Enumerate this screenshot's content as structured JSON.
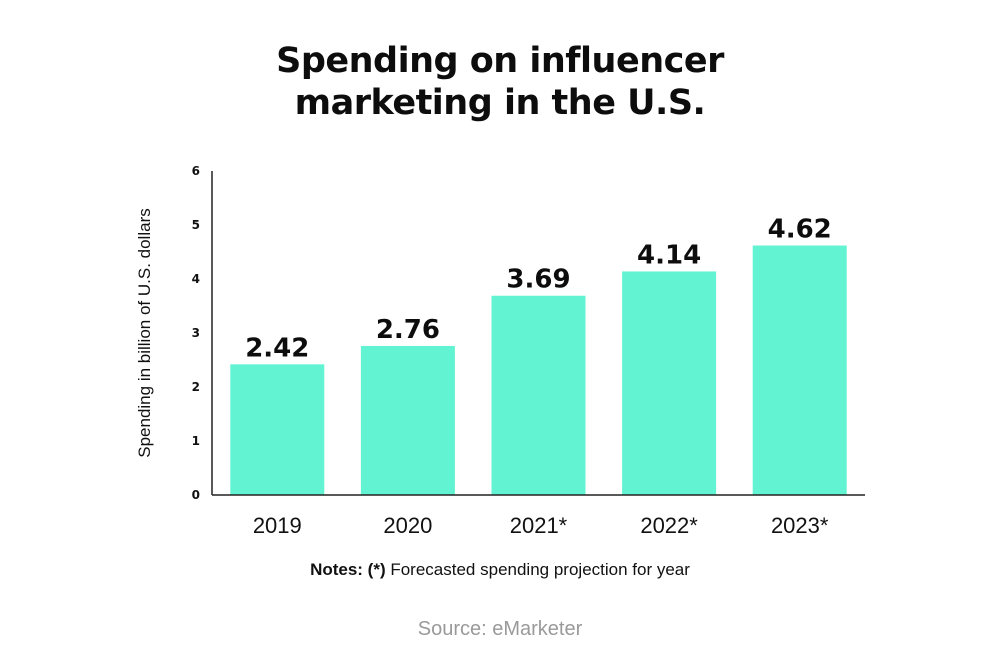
{
  "chart_data": {
    "type": "bar",
    "title": [
      "Spending on influencer",
      "marketing in the U.S."
    ],
    "ylabel": "Spending in billion of U.S. dollars",
    "xlabel": "",
    "categories": [
      "2019",
      "2020",
      "2021*",
      "2022*",
      "2023*"
    ],
    "values": [
      2.42,
      2.76,
      3.69,
      4.14,
      4.62
    ],
    "data_labels": [
      "2.42",
      "2.76",
      "3.69",
      "4.14",
      "4.62"
    ],
    "ylim": [
      0,
      6
    ],
    "yticks": [
      "0",
      "1",
      "2",
      "3",
      "4",
      "5",
      "6"
    ],
    "grid": false,
    "legend": "none",
    "bar_color": "#62f3d2"
  },
  "notes": {
    "label": "Notes: (*)",
    "text": " Forecasted spending projection for year"
  },
  "source": "Source: eMarketer"
}
